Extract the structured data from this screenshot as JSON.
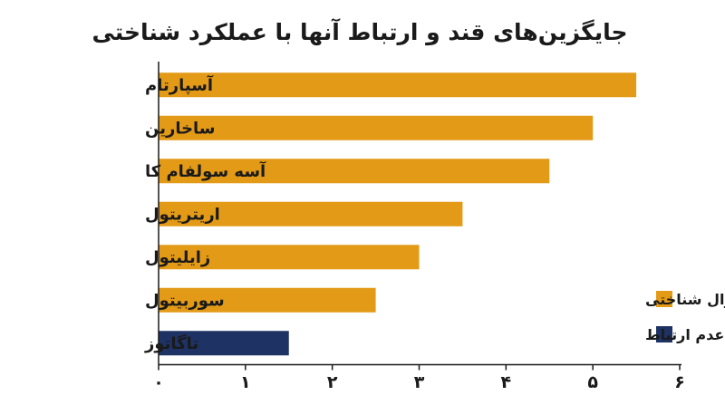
{
  "chart_data": {
    "type": "bar",
    "orientation": "horizontal",
    "title": "جایگزین‌های قند و ارتباط آنها با عملکرد شناختی",
    "categories": [
      "آسپارتام",
      "ساخارین",
      "آسه سولفام کا",
      "اریتریتول",
      "زایلیتول",
      "سوربیتول",
      "تاگاتوز"
    ],
    "values": [
      5.5,
      5.0,
      4.5,
      3.5,
      3.0,
      2.5,
      1.5
    ],
    "bar_series": [
      "linked",
      "linked",
      "linked",
      "linked",
      "linked",
      "linked",
      "none"
    ],
    "series": [
      {
        "id": "linked",
        "name": "ارتباط با زوال شناختی",
        "color": "#E39A16"
      },
      {
        "id": "none",
        "name": "عدم ارتباط",
        "color": "#1E3264"
      }
    ],
    "xlim": [
      0,
      6
    ],
    "xticks": [
      0,
      1,
      2,
      3,
      4,
      5,
      6
    ],
    "xtick_labels": [
      "۰",
      "۱",
      "۲",
      "۳",
      "۴",
      "۵",
      "۶"
    ],
    "xlabel": "",
    "ylabel": "",
    "grid": false,
    "legend_position": "bottom-right",
    "axis_color": "#1a1a1a"
  }
}
